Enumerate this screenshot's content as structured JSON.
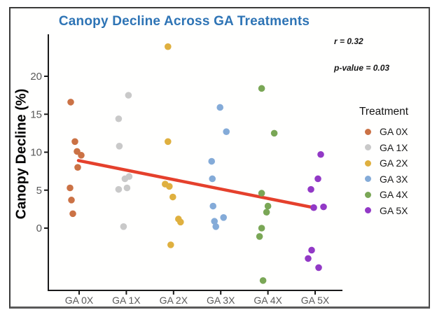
{
  "chart_data": {
    "type": "scatter",
    "title": "Canopy Decline Across GA Treatments",
    "xlabel": "",
    "ylabel": "Canopy Decline (%)",
    "categories": [
      "GA 0X",
      "GA 1X",
      "GA 2X",
      "GA 3X",
      "GA 4X",
      "GA 5X"
    ],
    "y_ticks": [
      0,
      5,
      10,
      15,
      20
    ],
    "ylim": [
      -8,
      25
    ],
    "grid": false,
    "legend_position": "right",
    "point_format": "[horizontal_jitter_px_from_category_center, canopy_decline_pct]",
    "series": [
      {
        "name": "GA 0X",
        "color": "#CB7245",
        "points": [
          [
            -12,
            16.6
          ],
          [
            -6,
            11.4
          ],
          [
            -3,
            10.1
          ],
          [
            3,
            9.6
          ],
          [
            -2,
            8.0
          ],
          [
            -13,
            5.3
          ],
          [
            -11,
            3.7
          ],
          [
            -9,
            1.9
          ]
        ]
      },
      {
        "name": "GA 1X",
        "color": "#C9C9C9",
        "points": [
          [
            3,
            17.5
          ],
          [
            -11,
            14.4
          ],
          [
            -10,
            10.8
          ],
          [
            4,
            6.8
          ],
          [
            -2,
            6.5
          ],
          [
            1,
            5.3
          ],
          [
            -11,
            5.1
          ],
          [
            -4,
            0.2
          ]
        ]
      },
      {
        "name": "GA 2X",
        "color": "#DFB03F",
        "points": [
          [
            -8,
            23.9
          ],
          [
            -8,
            11.4
          ],
          [
            -12,
            5.8
          ],
          [
            -6,
            5.5
          ],
          [
            -1,
            4.1
          ],
          [
            7,
            1.2
          ],
          [
            10,
            0.8
          ],
          [
            -4,
            -2.2
          ]
        ]
      },
      {
        "name": "GA 3X",
        "color": "#84ABD8",
        "points": [
          [
            -1,
            15.9
          ],
          [
            8,
            12.7
          ],
          [
            -13,
            8.8
          ],
          [
            -12,
            6.5
          ],
          [
            -11,
            2.9
          ],
          [
            4,
            1.4
          ],
          [
            -9,
            0.9
          ],
          [
            -7,
            0.2
          ]
        ]
      },
      {
        "name": "GA 4X",
        "color": "#7AA756",
        "points": [
          [
            -9,
            18.4
          ],
          [
            9,
            12.5
          ],
          [
            -9,
            4.6
          ],
          [
            0,
            2.9
          ],
          [
            -2,
            2.1
          ],
          [
            -9,
            0.0
          ],
          [
            -12,
            -1.1
          ],
          [
            -7,
            -6.9
          ]
        ]
      },
      {
        "name": "GA 5X",
        "color": "#9239C6",
        "points": [
          [
            8,
            9.7
          ],
          [
            4,
            6.5
          ],
          [
            -6,
            5.1
          ],
          [
            12,
            2.8
          ],
          [
            -2,
            2.7
          ],
          [
            -5,
            -2.9
          ],
          [
            -10,
            -4.0
          ],
          [
            5,
            -5.2
          ]
        ]
      }
    ],
    "trend_line": {
      "color": "#E5402C",
      "x1_cat": 0,
      "x1_dx": -1,
      "y1": 8.9,
      "x2_cat": 5,
      "x2_dx": -2,
      "y2": 2.7
    },
    "annotations": [
      {
        "text": "r = 0.32"
      },
      {
        "text": "p-value = 0.03"
      }
    ]
  },
  "legend": {
    "title": "Treatment"
  },
  "colors": {
    "title_text": "#2E74B5",
    "axis_line": "#1a1a1a",
    "tick_text": "#595959",
    "trend_line": "#E5402C",
    "frame_border": "#3a3a3a"
  }
}
